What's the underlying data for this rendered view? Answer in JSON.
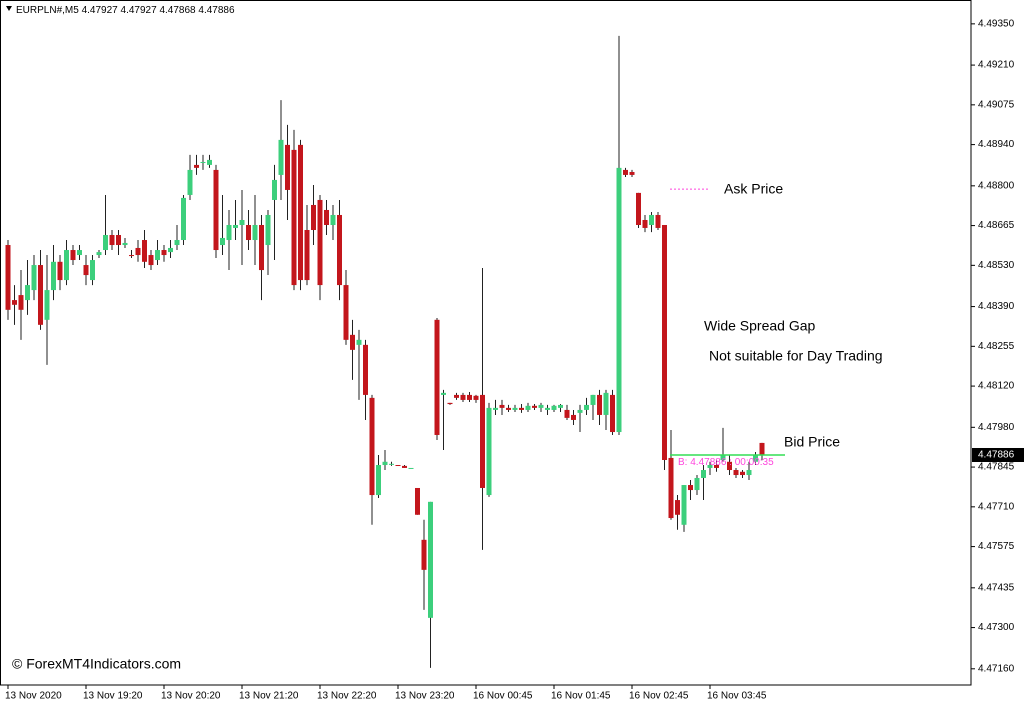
{
  "chart_data": {
    "type": "candlestick",
    "symbol": "EURPLN#,M5",
    "categories": [
      "13 Nov 2020",
      null,
      null,
      null,
      null,
      null,
      null,
      null,
      null,
      null,
      null,
      null,
      "13 Nov 19:20",
      null,
      null,
      null,
      null,
      null,
      null,
      null,
      null,
      null,
      null,
      null,
      "13 Nov 20:20",
      null,
      null,
      null,
      null,
      null,
      null,
      null,
      null,
      null,
      null,
      null,
      "13 Nov 21:20",
      null,
      null,
      null,
      null,
      null,
      null,
      null,
      null,
      null,
      null,
      null,
      "13 Nov 22:20",
      null,
      null,
      null,
      null,
      null,
      null,
      null,
      null,
      null,
      null,
      null,
      "13 Nov 23:20",
      null,
      null,
      null,
      null,
      null,
      null,
      null,
      null,
      null,
      null,
      null,
      "16 Nov 00:45",
      null,
      null,
      null,
      null,
      null,
      null,
      null,
      null,
      null,
      null,
      null,
      "16 Nov 01:45",
      null,
      null,
      null,
      null,
      null,
      null,
      null,
      null,
      null,
      null,
      null,
      "16 Nov 02:45",
      null,
      null,
      null,
      null,
      null,
      null,
      null,
      null,
      null,
      null,
      null,
      "16 Nov 03:45",
      null,
      null,
      null,
      null,
      null,
      null,
      null,
      null
    ],
    "open": [
      4.48599,
      4.48412,
      4.48429,
      4.48412,
      4.48446,
      4.48531,
      4.48345,
      4.48446,
      4.48542,
      4.4848,
      4.48582,
      4.48565,
      4.48531,
      4.4848,
      4.48565,
      4.48582,
      4.48633,
      4.48633,
      4.48599,
      4.48565,
      4.48589,
      4.48616,
      4.48565,
      4.48548,
      4.48582,
      4.48575,
      4.48599,
      4.48616,
      4.48769,
      4.48871,
      4.48878,
      4.48871,
      4.48854,
      4.48599,
      4.48616,
      4.48657,
      4.48667,
      4.48667,
      4.48616,
      4.48667,
      4.48599,
      4.48752,
      4.48837,
      4.48939,
      4.48922,
      4.48939,
      4.4865,
      4.48735,
      4.48752,
      4.48718,
      4.48667,
      4.48701,
      4.48463,
      4.48294,
      4.4826,
      4.4826,
      4.4808,
      4.4775,
      4.47852,
      4.47856,
      4.47852,
      4.47849,
      4.47842,
      4.47774,
      4.47598,
      4.47333,
      4.48345,
      4.4809,
      4.48063,
      4.4809,
      4.4809,
      4.4809,
      4.48087,
      4.4809,
      4.4775,
      4.48039,
      4.48056,
      4.48046,
      4.48039,
      4.48046,
      4.48039,
      4.48053,
      4.48046,
      4.48039,
      4.48039,
      4.48046,
      4.48039,
      4.48022,
      4.48029,
      4.48039,
      4.48056,
      4.4809,
      4.48022,
      4.4809,
      4.47964,
      4.48854,
      4.48847,
      4.48776,
      4.48684,
      4.48667,
      4.48701,
      4.48667,
      4.47876,
      4.47733,
      4.47649,
      4.47784,
      4.47767,
      4.47808,
      4.47842,
      4.47852,
      4.47869,
      4.47863,
      4.47835,
      4.47829,
      4.47818,
      4.47863,
      4.47927
    ],
    "high": [
      4.48616,
      4.48463,
      4.48514,
      4.48548,
      4.48565,
      4.48582,
      4.48565,
      4.48599,
      4.48565,
      4.48616,
      4.48599,
      4.48599,
      4.48565,
      4.48565,
      4.48582,
      4.48769,
      4.4865,
      4.4865,
      4.48623,
      4.48582,
      4.48616,
      4.4865,
      4.48582,
      4.48616,
      4.48599,
      4.48616,
      4.48667,
      4.48769,
      4.48905,
      4.48905,
      4.48905,
      4.48905,
      4.48871,
      4.48769,
      4.48718,
      4.48752,
      4.48786,
      4.48718,
      4.48769,
      4.48701,
      4.48718,
      4.48871,
      4.49091,
      4.49007,
      4.4899,
      4.48956,
      4.48735,
      4.48803,
      4.48769,
      4.48752,
      4.48735,
      4.48752,
      4.48514,
      4.48345,
      4.48311,
      4.48277,
      4.4809,
      4.47886,
      4.47903,
      4.47863,
      4.47852,
      4.47852,
      4.47842,
      4.47774,
      4.47666,
      4.47727,
      4.48351,
      4.48107,
      4.48063,
      4.48097,
      4.48097,
      4.481,
      4.4809,
      4.48521,
      4.48063,
      4.48073,
      4.48073,
      4.48056,
      4.48056,
      4.48059,
      4.48063,
      4.48059,
      4.48063,
      4.48056,
      4.48056,
      4.48059,
      4.48056,
      4.48039,
      4.48056,
      4.4808,
      4.4809,
      4.48107,
      4.48107,
      4.48107,
      4.49309,
      4.48861,
      4.48854,
      4.48776,
      4.48701,
      4.48711,
      4.48711,
      4.48667,
      4.47971,
      4.4775,
      4.47784,
      4.47801,
      4.47818,
      4.47852,
      4.47863,
      4.47869,
      4.47978,
      4.47886,
      4.47842,
      4.47835,
      4.47863,
      4.47896,
      4.47927
    ],
    "low": [
      4.48345,
      4.48328,
      4.48277,
      4.48362,
      4.48412,
      4.48311,
      4.48192,
      4.48412,
      4.48446,
      4.48463,
      4.48531,
      4.48548,
      4.48463,
      4.48463,
      4.48555,
      4.48565,
      4.48582,
      4.48565,
      4.48589,
      4.48555,
      4.48542,
      4.48521,
      4.48514,
      4.48531,
      4.48542,
      4.48555,
      4.48582,
      4.48599,
      4.48752,
      4.48837,
      4.48854,
      4.48861,
      4.48555,
      4.48565,
      4.48514,
      4.48616,
      4.48531,
      4.48582,
      4.48531,
      4.48412,
      4.48497,
      4.48548,
      4.48752,
      4.48684,
      4.48446,
      4.48446,
      4.48463,
      4.48599,
      4.48412,
      4.48633,
      4.48616,
      4.48412,
      4.4826,
      4.48141,
      4.48073,
      4.48005,
      4.47649,
      4.4774,
      4.47835,
      4.47849,
      4.47849,
      4.47842,
      4.47842,
      4.47683,
      4.4736,
      4.47163,
      4.47937,
      4.47903,
      4.48056,
      4.48073,
      4.48066,
      4.48066,
      4.48063,
      4.47564,
      4.47744,
      4.48022,
      4.48022,
      4.48032,
      4.48032,
      4.48029,
      4.48032,
      4.48039,
      4.48032,
      4.48022,
      4.48032,
      4.48032,
      4.48005,
      4.47988,
      4.47964,
      4.48022,
      4.48005,
      4.47988,
      4.47971,
      4.47954,
      4.47954,
      4.4883,
      4.4883,
      4.48657,
      4.48643,
      4.48643,
      4.4865,
      4.47835,
      4.47666,
      4.47632,
      4.47625,
      4.47733,
      4.4775,
      4.47733,
      4.47818,
      4.47829,
      4.47863,
      4.47818,
      4.47808,
      4.47808,
      4.47801,
      4.47852,
      4.47868
    ],
    "close": [
      4.48379,
      4.48396,
      4.48379,
      4.48463,
      4.48531,
      4.48328,
      4.48446,
      4.48542,
      4.4848,
      4.48582,
      4.48548,
      4.48582,
      4.48497,
      4.48548,
      4.48575,
      4.48633,
      4.48599,
      4.48599,
      4.48606,
      4.48562,
      4.48565,
      4.48542,
      4.48531,
      4.48582,
      4.48565,
      4.48589,
      4.48616,
      4.48759,
      4.48854,
      4.48861,
      4.48881,
      4.48888,
      4.48582,
      4.48623,
      4.48667,
      4.48667,
      4.48684,
      4.48616,
      4.48667,
      4.48514,
      4.48701,
      4.4882,
      4.48956,
      4.48786,
      4.48463,
      4.4848,
      4.4848,
      4.4865,
      4.48463,
      4.48667,
      4.48701,
      4.48463,
      4.48277,
      4.48243,
      4.48277,
      4.4809,
      4.4775,
      4.47852,
      4.47863,
      4.47856,
      4.47849,
      4.47842,
      4.47842,
      4.47683,
      4.47496,
      4.47727,
      4.47954,
      4.48097,
      4.48059,
      4.4808,
      4.48073,
      4.48073,
      4.48073,
      4.47774,
      4.48046,
      4.48046,
      4.48046,
      4.48039,
      4.48046,
      4.48039,
      4.48053,
      4.48046,
      4.48056,
      4.48046,
      4.48053,
      4.48056,
      4.48012,
      4.48005,
      4.48039,
      4.48056,
      4.4809,
      4.48022,
      4.48097,
      4.47964,
      4.48861,
      4.48837,
      4.48837,
      4.48667,
      4.48657,
      4.48701,
      4.48657,
      4.47869,
      4.47672,
      4.47683,
      4.47784,
      4.47767,
      4.47808,
      4.47835,
      4.47852,
      4.47842,
      4.47886,
      4.47835,
      4.47818,
      4.47818,
      4.47835,
      4.47886,
      4.47886
    ],
    "up_color": "#3ccf7c",
    "down_color": "#c3161c",
    "wick_color": "#222222",
    "ylim": [
      4.47105,
      4.49431
    ],
    "yticks": [
      {
        "value": 4.4935,
        "label": "4.49350"
      },
      {
        "value": 4.4921,
        "label": "4.49210"
      },
      4.49075,
      {
        "value": 4.4894,
        "label": "4.48940"
      },
      {
        "value": 4.488,
        "label": "4.48800"
      },
      4.48665,
      {
        "value": 4.4853,
        "label": "4.48530"
      },
      {
        "value": 4.4839,
        "label": "4.48390"
      },
      4.48255,
      {
        "value": 4.4812,
        "label": "4.48120"
      },
      {
        "value": 4.4798,
        "label": "4.47980"
      },
      4.47845,
      {
        "value": 4.4771,
        "label": "4.47710"
      },
      4.47575,
      4.47435,
      {
        "value": 4.473,
        "label": "4.47300"
      },
      {
        "value": 4.4716,
        "label": "4.47160"
      }
    ],
    "ask": 4.48789,
    "ask_color": "#ff44dd",
    "bid_color": "#33dd55",
    "ask_label": "Ask Price",
    "bid_label": "Bid Price",
    "gap_label": "Wide Spread Gap",
    "note": "Not suitable for Day Trading",
    "bid_prefix": "B:",
    "timer_separator": ":",
    "timer": "00:00:35",
    "watermark": "© ForexMT4Indicators.com"
  }
}
